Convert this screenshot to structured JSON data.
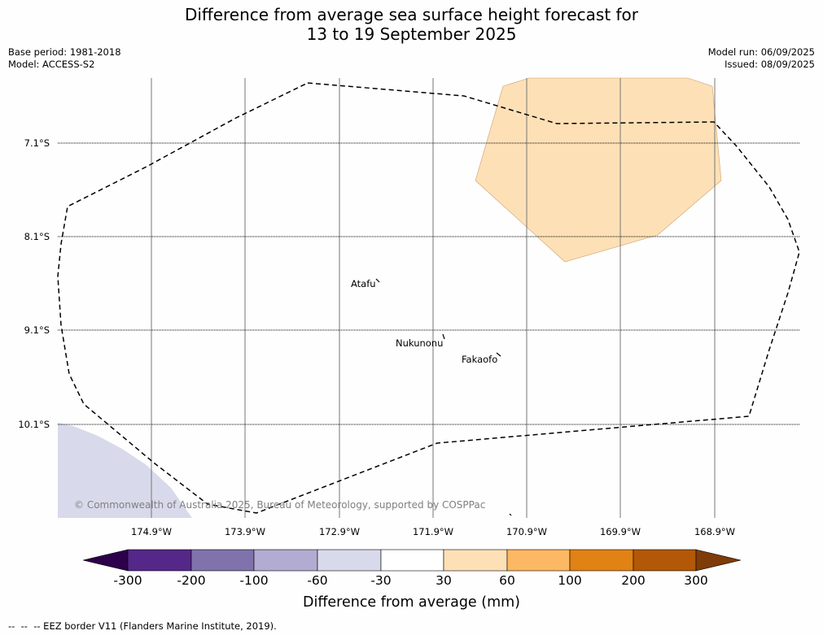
{
  "title_line1": "Difference from average sea surface height forecast for",
  "title_line2": "13 to 19 September 2025",
  "base_period": "Base period: 1981-2018",
  "model": "Model: ACCESS-S2",
  "model_run": "Model run: 06/09/2025",
  "issued": "Issued: 08/09/2025",
  "lat_labels": [
    "7.1°S",
    "8.1°S",
    "9.1°S",
    "10.1°S"
  ],
  "lon_labels": [
    "174.9°W",
    "173.9°W",
    "172.9°W",
    "171.9°W",
    "170.9°W",
    "169.9°W",
    "168.9°W"
  ],
  "places": [
    "Atafu",
    "Nukunonu",
    "Fakaofo"
  ],
  "copyright": "© Commonwealth of Australia 2025, Bureau of Meteorology, supported by COSPPac",
  "colorbar": {
    "ticks": [
      "-300",
      "-200",
      "-100",
      "-60",
      "-30",
      "30",
      "60",
      "100",
      "200",
      "300"
    ],
    "colors": [
      "#2d004b",
      "#542788",
      "#8073ac",
      "#b2abd2",
      "#d8daeb",
      "#ffffff",
      "#fee0b6",
      "#fdb863",
      "#e08214",
      "#b35806",
      "#7f3b08"
    ],
    "label": "Difference from average (mm)"
  },
  "shading_colors": {
    "positive_30_60": "#fee0b6",
    "negative_30_60": "#d8daeb"
  },
  "footnote": "--  --  -- EEZ border V11 (Flanders Marine Institute, 2019)."
}
